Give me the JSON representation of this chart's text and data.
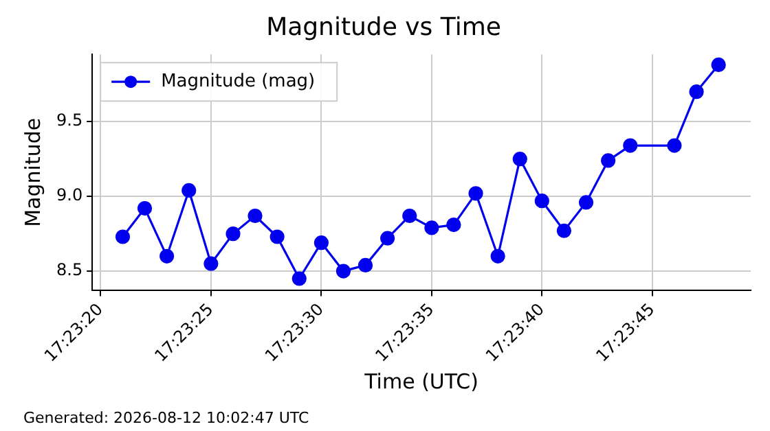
{
  "chart_data": {
    "type": "line",
    "title": "Magnitude vs Time",
    "xlabel": "Time (UTC)",
    "ylabel": "Magnitude",
    "annotations": [
      "Generated: 2026-08-12 10:02:47 UTC"
    ],
    "x": [
      17.389167,
      17.389444,
      17.389722,
      17.39,
      17.390278,
      17.390556,
      17.390833,
      17.391111,
      17.391389,
      17.391667,
      17.391944,
      17.392222,
      17.3925,
      17.392778,
      17.393056,
      17.393333,
      17.393611,
      17.393889,
      17.394167,
      17.394444,
      17.394722,
      17.395,
      17.395278,
      17.395556,
      17.396111,
      17.396389,
      17.396667
    ],
    "series": [
      {
        "name": "Magnitude (mag)",
        "color": "#0000ee",
        "values": [
          8.73,
          8.92,
          8.6,
          9.04,
          8.55,
          8.75,
          8.87,
          8.73,
          8.45,
          8.69,
          8.5,
          8.54,
          8.72,
          8.87,
          8.79,
          8.81,
          9.02,
          8.6,
          9.25,
          8.97,
          8.77,
          8.96,
          9.24,
          9.34,
          9.34,
          9.7,
          9.88
        ]
      }
    ],
    "xlim": [
      17.388783,
      17.397072
    ],
    "xticks": [
      {
        "value": 17.388889,
        "label": "17:23:20"
      },
      {
        "value": 17.390278,
        "label": "17:23:25"
      },
      {
        "value": 17.391667,
        "label": "17:23:30"
      },
      {
        "value": 17.393056,
        "label": "17:23:35"
      },
      {
        "value": 17.394444,
        "label": "17:23:40"
      },
      {
        "value": 17.395833,
        "label": "17:23:45"
      }
    ],
    "ylim": [
      8.37,
      9.95
    ],
    "yticks": [
      {
        "value": 8.5,
        "label": "8.5"
      },
      {
        "value": 9,
        "label": "9.0"
      },
      {
        "value": 9.5,
        "label": "9.5"
      }
    ],
    "grid": true,
    "legend": "top left",
    "marker": "circle",
    "line_style": "solid"
  }
}
